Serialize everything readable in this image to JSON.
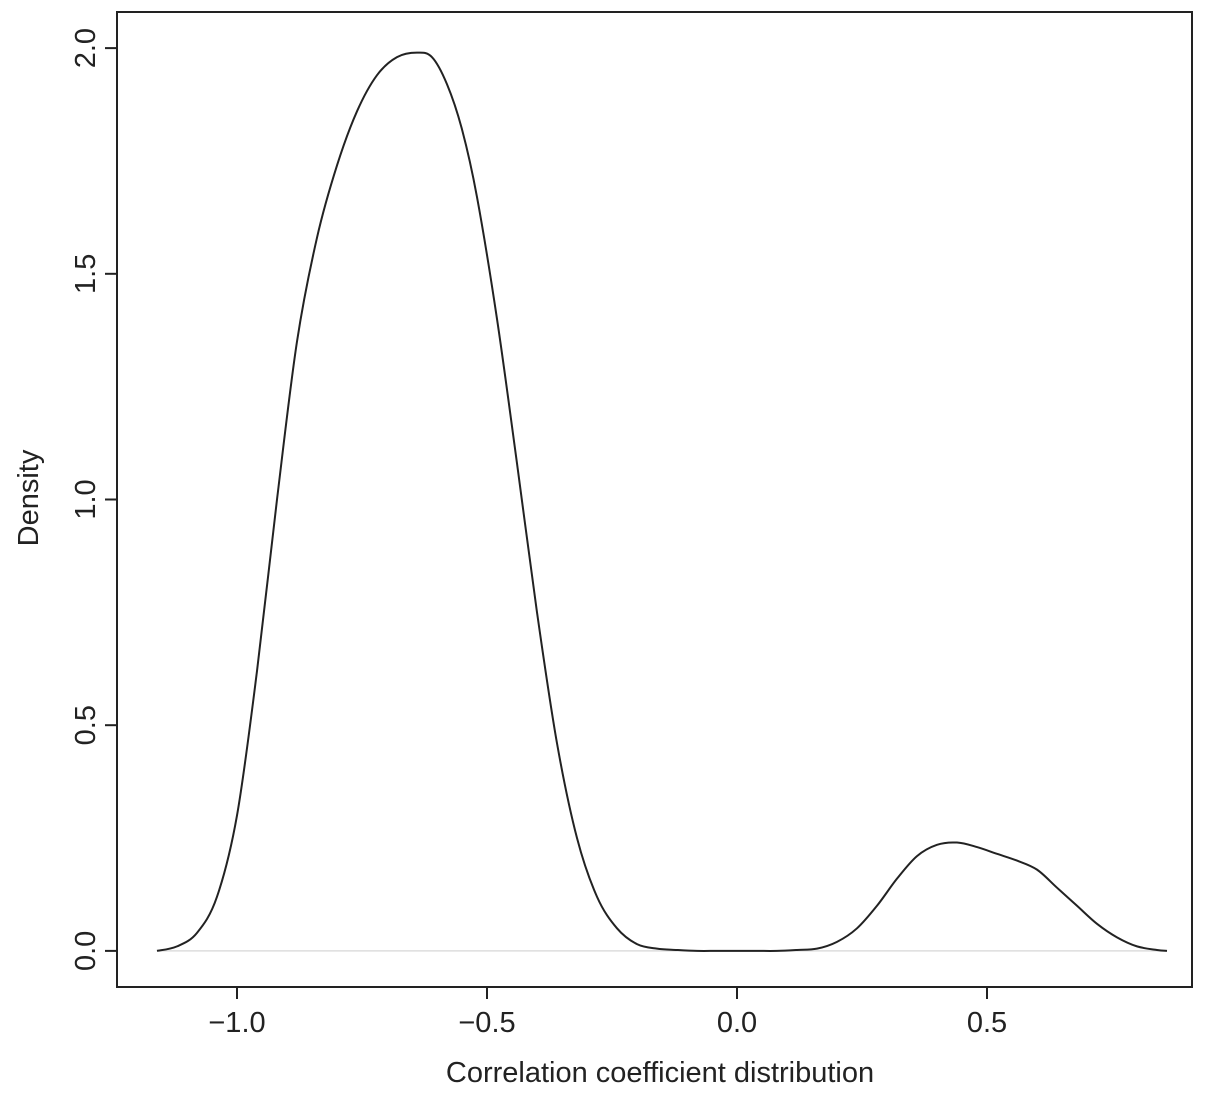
{
  "chart_data": {
    "type": "line",
    "title": "",
    "xlabel": "Correlation coefficient distribution",
    "ylabel": "Density",
    "xlim": [
      -1.24,
      0.91
    ],
    "ylim": [
      -0.08,
      2.08
    ],
    "x_ticks": [
      -1.0,
      -0.5,
      0.0,
      0.5
    ],
    "x_tick_labels": [
      "−1.0",
      "−0.5",
      "0.0",
      "0.5"
    ],
    "y_ticks": [
      0.0,
      0.5,
      1.0,
      1.5,
      2.0
    ],
    "y_tick_labels": [
      "0.0",
      "0.5",
      "1.0",
      "1.5",
      "2.0"
    ],
    "grid": false,
    "zero_line": true,
    "line_color": "#222222",
    "zero_line_color": "#dddddd",
    "series": [
      {
        "x": [
          -1.16,
          -1.12,
          -1.08,
          -1.04,
          -1.0,
          -0.96,
          -0.92,
          -0.88,
          -0.84,
          -0.8,
          -0.76,
          -0.72,
          -0.68,
          -0.64,
          -0.61,
          -0.58,
          -0.55,
          -0.52,
          -0.48,
          -0.44,
          -0.4,
          -0.36,
          -0.32,
          -0.28,
          -0.24,
          -0.2,
          -0.16,
          -0.12,
          -0.08,
          -0.04,
          0.0,
          0.04,
          0.08,
          0.12,
          0.16,
          0.2,
          0.24,
          0.28,
          0.32,
          0.36,
          0.4,
          0.44,
          0.48,
          0.52,
          0.56,
          0.6,
          0.64,
          0.68,
          0.72,
          0.76,
          0.8,
          0.84,
          0.86
        ],
        "y": [
          0.0,
          0.01,
          0.04,
          0.12,
          0.3,
          0.62,
          1.0,
          1.35,
          1.58,
          1.74,
          1.86,
          1.94,
          1.98,
          1.99,
          1.98,
          1.92,
          1.82,
          1.67,
          1.4,
          1.08,
          0.75,
          0.46,
          0.25,
          0.12,
          0.05,
          0.015,
          0.005,
          0.002,
          0.0,
          0.0,
          0.0,
          0.0,
          0.0,
          0.002,
          0.005,
          0.02,
          0.05,
          0.1,
          0.16,
          0.21,
          0.235,
          0.24,
          0.23,
          0.215,
          0.2,
          0.18,
          0.14,
          0.1,
          0.06,
          0.03,
          0.01,
          0.002,
          0.0
        ]
      }
    ]
  }
}
